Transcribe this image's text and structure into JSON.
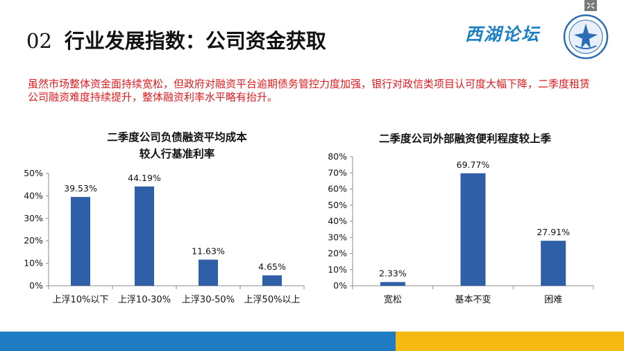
{
  "slide": {
    "number": "02",
    "title": "行业发展指数：公司资金获取",
    "brand": "西湖论坛",
    "summary": "虽然市场整体资金面持续宽松，但政府对融资平台逾期债务管控力度加强，银行对政信类项目认可度大幅下降，二季度租赁公司融资难度持续提升，整体融资利率水平略有抬升。"
  },
  "colors": {
    "bar": "#2e5fa7",
    "summary": "#e0191f",
    "bottom_left": "#1f7cc2",
    "bottom_right": "#f5b911"
  },
  "icons": {
    "logo": "circular-emblem-icon",
    "expand": "expand-icon"
  },
  "chart_data": [
    {
      "type": "bar",
      "title_line1": "二季度公司负债融资平均成本",
      "title_line2": "较人行基准利率",
      "categories": [
        "上浮10%以下",
        "上浮10-30%",
        "上浮30-50%",
        "上浮50%以上"
      ],
      "values": [
        39.53,
        44.19,
        11.63,
        4.65
      ],
      "value_labels": [
        "39.53%",
        "44.19%",
        "11.63%",
        "4.65%"
      ],
      "ylim": [
        0,
        50
      ],
      "yticks": [
        "0%",
        "10%",
        "20%",
        "30%",
        "40%",
        "50%"
      ],
      "grid": false
    },
    {
      "type": "bar",
      "title_line1": "二季度公司外部融资便利程度较上季",
      "categories": [
        "宽松",
        "基本不变",
        "困难"
      ],
      "values": [
        2.33,
        69.77,
        27.91
      ],
      "value_labels": [
        "2.33%",
        "69.77%",
        "27.91%"
      ],
      "ylim": [
        0,
        80
      ],
      "yticks": [
        "0%",
        "10%",
        "20%",
        "30%",
        "40%",
        "50%",
        "60%",
        "70%",
        "80%"
      ],
      "grid": false
    }
  ]
}
